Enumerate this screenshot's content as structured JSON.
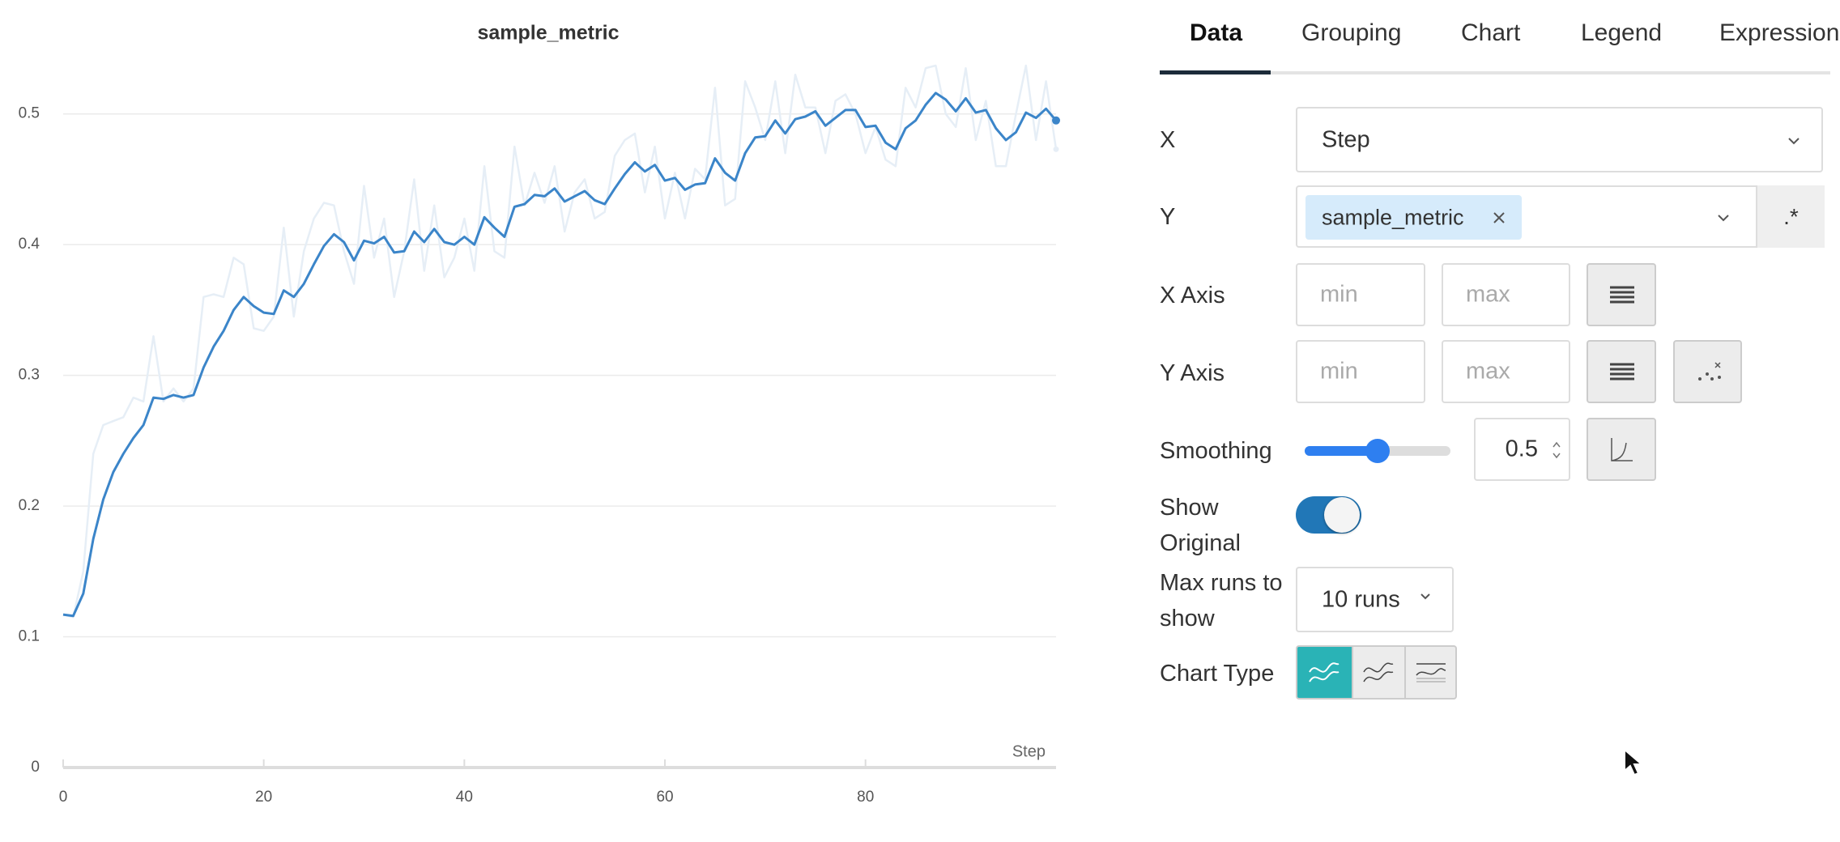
{
  "chart_data": {
    "type": "line",
    "title": "sample_metric",
    "x_label": "Step",
    "x": [
      0,
      1,
      2,
      3,
      4,
      5,
      6,
      7,
      8,
      9,
      10,
      11,
      12,
      13,
      14,
      15,
      16,
      17,
      18,
      19,
      20,
      21,
      22,
      23,
      24,
      25,
      26,
      27,
      28,
      29,
      30,
      31,
      32,
      33,
      34,
      35,
      36,
      37,
      38,
      39,
      40,
      41,
      42,
      43,
      44,
      45,
      46,
      47,
      48,
      49,
      50,
      51,
      52,
      53,
      54,
      55,
      56,
      57,
      58,
      59,
      60,
      61,
      62,
      63,
      64,
      65,
      66,
      67,
      68,
      69,
      70,
      71,
      72,
      73,
      74,
      75,
      76,
      77,
      78,
      79,
      80,
      81,
      82,
      83,
      84,
      85,
      86,
      87,
      88,
      89,
      90,
      91,
      92,
      93,
      94,
      95,
      96,
      97,
      98,
      99
    ],
    "series": [
      {
        "color": "#e6eef6",
        "values": [
          0.117,
          0.115,
          0.15,
          0.24,
          0.262,
          0.265,
          0.268,
          0.283,
          0.28,
          0.33,
          0.28,
          0.29,
          0.28,
          0.29,
          0.36,
          0.362,
          0.36,
          0.39,
          0.385,
          0.336,
          0.334,
          0.345,
          0.413,
          0.345,
          0.395,
          0.42,
          0.432,
          0.43,
          0.395,
          0.37,
          0.445,
          0.39,
          0.42,
          0.36,
          0.395,
          0.45,
          0.38,
          0.43,
          0.375,
          0.39,
          0.42,
          0.38,
          0.46,
          0.395,
          0.39,
          0.475,
          0.43,
          0.455,
          0.432,
          0.46,
          0.41,
          0.44,
          0.45,
          0.42,
          0.425,
          0.468,
          0.48,
          0.485,
          0.44,
          0.475,
          0.42,
          0.455,
          0.42,
          0.458,
          0.45,
          0.52,
          0.43,
          0.435,
          0.525,
          0.505,
          0.48,
          0.525,
          0.47,
          0.53,
          0.505,
          0.505,
          0.47,
          0.51,
          0.515,
          0.5,
          0.47,
          0.49,
          0.465,
          0.46,
          0.52,
          0.505,
          0.535,
          0.537,
          0.5,
          0.49,
          0.535,
          0.48,
          0.51,
          0.46,
          0.46,
          0.5,
          0.537,
          0.48,
          0.525,
          0.473
        ]
      },
      {
        "color": "#3b85c9",
        "values": [
          0.117,
          0.116,
          0.133,
          0.175,
          0.205,
          0.226,
          0.24,
          0.252,
          0.262,
          0.283,
          0.282,
          0.285,
          0.283,
          0.285,
          0.306,
          0.322,
          0.334,
          0.35,
          0.36,
          0.353,
          0.348,
          0.347,
          0.365,
          0.36,
          0.37,
          0.385,
          0.399,
          0.408,
          0.402,
          0.388,
          0.403,
          0.401,
          0.406,
          0.394,
          0.395,
          0.41,
          0.402,
          0.412,
          0.402,
          0.4,
          0.406,
          0.4,
          0.421,
          0.413,
          0.406,
          0.429,
          0.431,
          0.438,
          0.437,
          0.443,
          0.433,
          0.437,
          0.441,
          0.434,
          0.431,
          0.443,
          0.454,
          0.463,
          0.456,
          0.461,
          0.449,
          0.451,
          0.442,
          0.446,
          0.447,
          0.466,
          0.455,
          0.449,
          0.47,
          0.482,
          0.483,
          0.495,
          0.485,
          0.496,
          0.498,
          0.502,
          0.491,
          0.497,
          0.503,
          0.503,
          0.49,
          0.491,
          0.478,
          0.473,
          0.489,
          0.495,
          0.507,
          0.516,
          0.511,
          0.502,
          0.512,
          0.501,
          0.503,
          0.489,
          0.48,
          0.486,
          0.501,
          0.497,
          0.504,
          0.495
        ]
      }
    ],
    "xlim": [
      0,
      99
    ],
    "ylim": [
      0,
      0.55
    ],
    "xticks": [
      0,
      20,
      40,
      60,
      80
    ],
    "yticks": [
      0,
      0.1,
      0.2,
      0.3,
      0.4,
      0.5
    ],
    "grid": true
  },
  "panel": {
    "tabs": [
      "Data",
      "Grouping",
      "Chart",
      "Legend",
      "Expressions"
    ],
    "x": {
      "label": "X",
      "value": "Step"
    },
    "y": {
      "label": "Y",
      "chip": "sample_metric",
      "regex": ".*"
    },
    "x_axis": {
      "label": "X Axis",
      "min": "min",
      "max": "max"
    },
    "y_axis": {
      "label": "Y Axis",
      "min": "min",
      "max": "max"
    },
    "smoothing": {
      "label": "Smoothing",
      "value": 0.5
    },
    "show_original": {
      "label": "Show Original"
    },
    "max_runs": {
      "label": "Max runs to show",
      "value": "10 runs"
    },
    "chart_type": {
      "label": "Chart Type"
    }
  }
}
